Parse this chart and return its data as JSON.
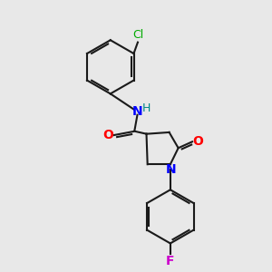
{
  "bg_color": "#e8e8e8",
  "bond_color": "#1a1a1a",
  "N_color": "#0000ff",
  "O_color": "#ff0000",
  "Cl_color": "#00aa00",
  "F_color": "#cc00cc",
  "H_color": "#008888",
  "line_width": 1.5,
  "font_size": 9,
  "fig_width": 3.0,
  "fig_height": 3.0,
  "xlim": [
    0,
    10
  ],
  "ylim": [
    0,
    10
  ]
}
